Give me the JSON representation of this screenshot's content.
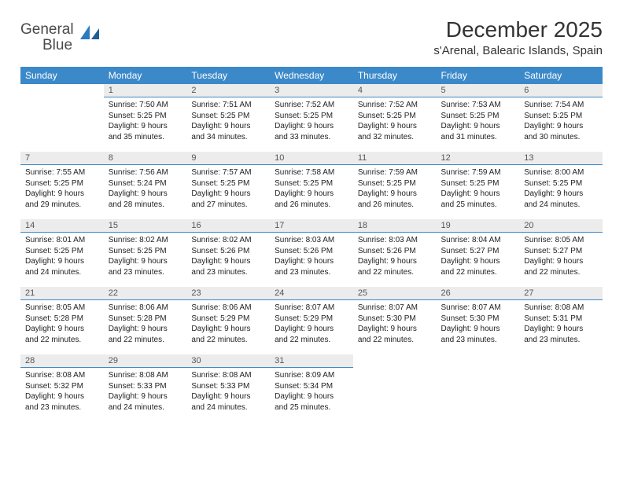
{
  "brand": {
    "part1": "General",
    "part2": "Blue"
  },
  "title": "December 2025",
  "location": "s'Arenal, Balearic Islands, Spain",
  "colors": {
    "header_bg": "#3b89c9",
    "header_fg": "#ffffff",
    "daynum_bg": "#ececec",
    "daynum_border": "#3b89c9",
    "text": "#222222",
    "brand_gray": "#4a4a4a",
    "brand_blue": "#2b7bbf"
  },
  "weekdays": [
    "Sunday",
    "Monday",
    "Tuesday",
    "Wednesday",
    "Thursday",
    "Friday",
    "Saturday"
  ],
  "weeks": [
    [
      null,
      {
        "n": "1",
        "sr": "7:50 AM",
        "ss": "5:25 PM",
        "dl": "9 hours and 35 minutes."
      },
      {
        "n": "2",
        "sr": "7:51 AM",
        "ss": "5:25 PM",
        "dl": "9 hours and 34 minutes."
      },
      {
        "n": "3",
        "sr": "7:52 AM",
        "ss": "5:25 PM",
        "dl": "9 hours and 33 minutes."
      },
      {
        "n": "4",
        "sr": "7:52 AM",
        "ss": "5:25 PM",
        "dl": "9 hours and 32 minutes."
      },
      {
        "n": "5",
        "sr": "7:53 AM",
        "ss": "5:25 PM",
        "dl": "9 hours and 31 minutes."
      },
      {
        "n": "6",
        "sr": "7:54 AM",
        "ss": "5:25 PM",
        "dl": "9 hours and 30 minutes."
      }
    ],
    [
      {
        "n": "7",
        "sr": "7:55 AM",
        "ss": "5:25 PM",
        "dl": "9 hours and 29 minutes."
      },
      {
        "n": "8",
        "sr": "7:56 AM",
        "ss": "5:24 PM",
        "dl": "9 hours and 28 minutes."
      },
      {
        "n": "9",
        "sr": "7:57 AM",
        "ss": "5:25 PM",
        "dl": "9 hours and 27 minutes."
      },
      {
        "n": "10",
        "sr": "7:58 AM",
        "ss": "5:25 PM",
        "dl": "9 hours and 26 minutes."
      },
      {
        "n": "11",
        "sr": "7:59 AM",
        "ss": "5:25 PM",
        "dl": "9 hours and 26 minutes."
      },
      {
        "n": "12",
        "sr": "7:59 AM",
        "ss": "5:25 PM",
        "dl": "9 hours and 25 minutes."
      },
      {
        "n": "13",
        "sr": "8:00 AM",
        "ss": "5:25 PM",
        "dl": "9 hours and 24 minutes."
      }
    ],
    [
      {
        "n": "14",
        "sr": "8:01 AM",
        "ss": "5:25 PM",
        "dl": "9 hours and 24 minutes."
      },
      {
        "n": "15",
        "sr": "8:02 AM",
        "ss": "5:25 PM",
        "dl": "9 hours and 23 minutes."
      },
      {
        "n": "16",
        "sr": "8:02 AM",
        "ss": "5:26 PM",
        "dl": "9 hours and 23 minutes."
      },
      {
        "n": "17",
        "sr": "8:03 AM",
        "ss": "5:26 PM",
        "dl": "9 hours and 23 minutes."
      },
      {
        "n": "18",
        "sr": "8:03 AM",
        "ss": "5:26 PM",
        "dl": "9 hours and 22 minutes."
      },
      {
        "n": "19",
        "sr": "8:04 AM",
        "ss": "5:27 PM",
        "dl": "9 hours and 22 minutes."
      },
      {
        "n": "20",
        "sr": "8:05 AM",
        "ss": "5:27 PM",
        "dl": "9 hours and 22 minutes."
      }
    ],
    [
      {
        "n": "21",
        "sr": "8:05 AM",
        "ss": "5:28 PM",
        "dl": "9 hours and 22 minutes."
      },
      {
        "n": "22",
        "sr": "8:06 AM",
        "ss": "5:28 PM",
        "dl": "9 hours and 22 minutes."
      },
      {
        "n": "23",
        "sr": "8:06 AM",
        "ss": "5:29 PM",
        "dl": "9 hours and 22 minutes."
      },
      {
        "n": "24",
        "sr": "8:07 AM",
        "ss": "5:29 PM",
        "dl": "9 hours and 22 minutes."
      },
      {
        "n": "25",
        "sr": "8:07 AM",
        "ss": "5:30 PM",
        "dl": "9 hours and 22 minutes."
      },
      {
        "n": "26",
        "sr": "8:07 AM",
        "ss": "5:30 PM",
        "dl": "9 hours and 23 minutes."
      },
      {
        "n": "27",
        "sr": "8:08 AM",
        "ss": "5:31 PM",
        "dl": "9 hours and 23 minutes."
      }
    ],
    [
      {
        "n": "28",
        "sr": "8:08 AM",
        "ss": "5:32 PM",
        "dl": "9 hours and 23 minutes."
      },
      {
        "n": "29",
        "sr": "8:08 AM",
        "ss": "5:33 PM",
        "dl": "9 hours and 24 minutes."
      },
      {
        "n": "30",
        "sr": "8:08 AM",
        "ss": "5:33 PM",
        "dl": "9 hours and 24 minutes."
      },
      {
        "n": "31",
        "sr": "8:09 AM",
        "ss": "5:34 PM",
        "dl": "9 hours and 25 minutes."
      },
      null,
      null,
      null
    ]
  ],
  "labels": {
    "sunrise": "Sunrise:",
    "sunset": "Sunset:",
    "daylight": "Daylight:"
  }
}
